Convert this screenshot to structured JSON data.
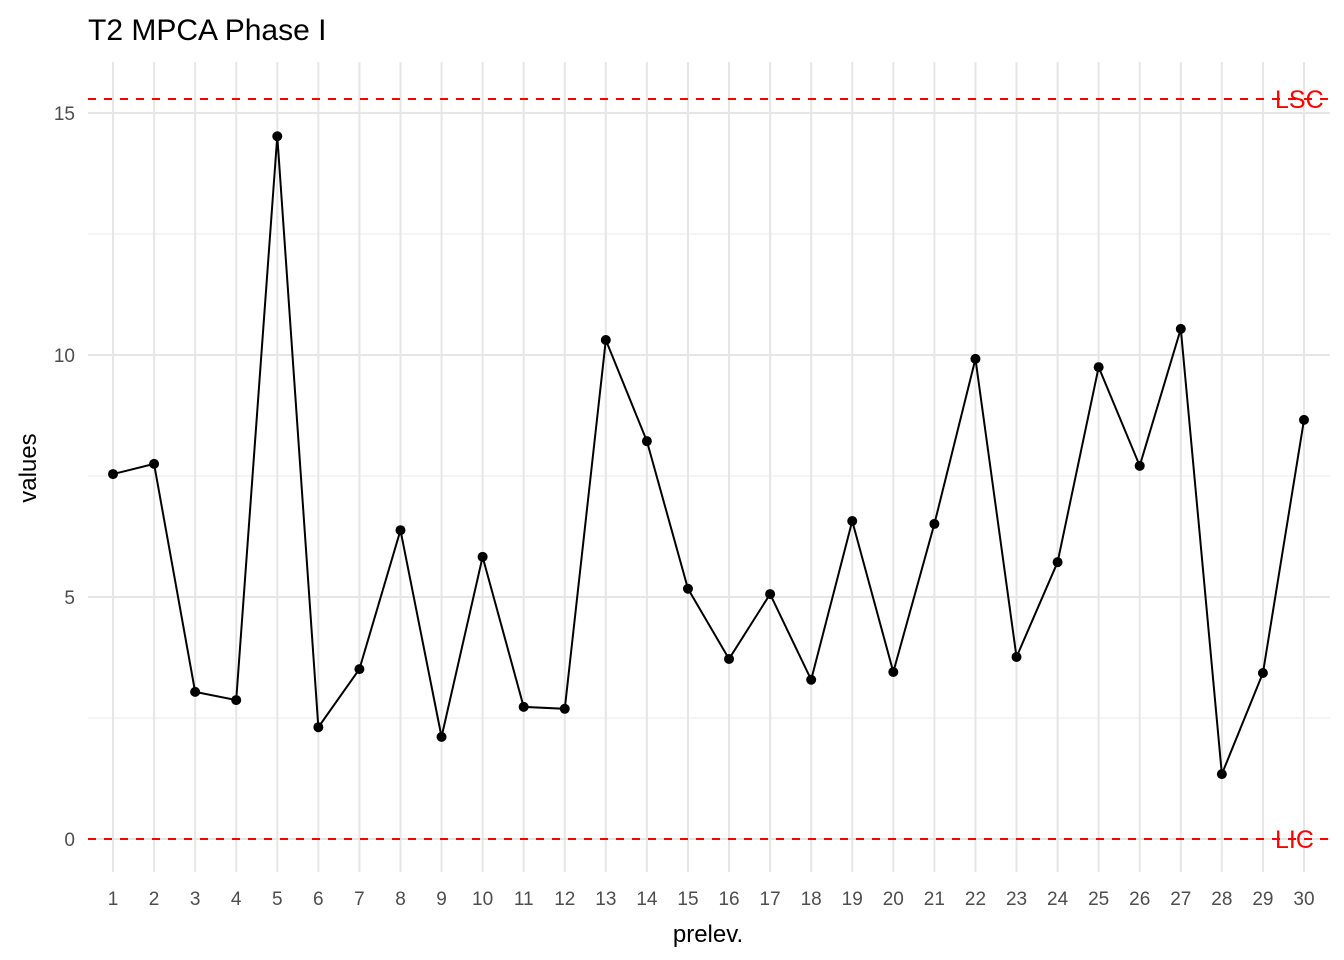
{
  "chart_data": {
    "type": "line",
    "title": "T2 MPCA Phase I",
    "xlabel": "prelev.",
    "ylabel": "values",
    "x": [
      1,
      2,
      3,
      4,
      5,
      6,
      7,
      8,
      9,
      10,
      11,
      12,
      13,
      14,
      15,
      16,
      17,
      18,
      19,
      20,
      21,
      22,
      23,
      24,
      25,
      26,
      27,
      28,
      29,
      30
    ],
    "values": [
      7.54,
      7.75,
      3.04,
      2.87,
      14.52,
      2.31,
      3.51,
      6.38,
      2.11,
      5.83,
      2.73,
      2.69,
      10.31,
      8.22,
      5.17,
      3.72,
      5.06,
      3.29,
      6.57,
      3.45,
      6.51,
      9.92,
      3.76,
      5.72,
      9.75,
      7.71,
      10.54,
      1.34,
      3.43,
      8.66
    ],
    "yticks": [
      0,
      5,
      10,
      15
    ],
    "ylim": [
      -0.7,
      16.0
    ],
    "xlim": [
      0.4,
      30.6
    ],
    "grid": true,
    "control_limits": [
      {
        "label": "LSC",
        "value": 15.29,
        "color": "#FF0000"
      },
      {
        "label": "LIC",
        "value": 0,
        "color": "#FF0000"
      }
    ]
  }
}
